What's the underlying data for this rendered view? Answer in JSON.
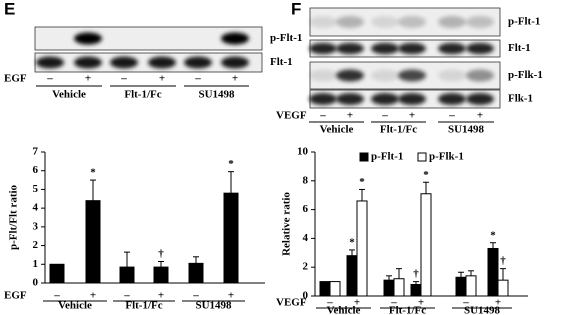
{
  "panels": [
    {
      "letter": "E",
      "blot_labels": [
        "p-Flt-1",
        "Flt-1"
      ],
      "treatment": "EGF",
      "signs": [
        "–",
        "+",
        "–",
        "+",
        "–",
        "+"
      ],
      "groups": [
        "Vehicle",
        "Flt-1/Fc",
        "SU1498"
      ]
    },
    {
      "letter": "F",
      "blot_labels": [
        "p-Flt-1",
        "Flt-1",
        "p-Flk-1",
        "Flk-1"
      ],
      "treatment": "VEGF",
      "signs": [
        "–",
        "+",
        "–",
        "+",
        "–",
        "+"
      ],
      "groups": [
        "Vehicle",
        "Flt-1/Fc",
        "SU1498"
      ]
    }
  ],
  "chart_data": [
    {
      "type": "bar",
      "ylabel": "p-Flt/Flt ratio",
      "treatment": "EGF",
      "categories": [
        "–",
        "+",
        "–",
        "+",
        "–",
        "+"
      ],
      "groups": [
        "Vehicle",
        "Flt-1/Fc",
        "SU1498"
      ],
      "ylim": [
        0,
        7
      ],
      "yticks": [
        0,
        1,
        2,
        3,
        4,
        5,
        6,
        7
      ],
      "series": [
        {
          "color": "#000000",
          "values": [
            1,
            4.4,
            0.85,
            0.85,
            1.05,
            4.8
          ],
          "errors": [
            null,
            1.1,
            0.8,
            0.3,
            0.35,
            1.15
          ],
          "markers": [
            null,
            "*",
            null,
            "†",
            null,
            "*"
          ]
        }
      ]
    },
    {
      "type": "bar",
      "ylabel": "Relative ratio",
      "treatment": "VEGF",
      "categories": [
        "–",
        "+",
        "–",
        "+",
        "–",
        "+"
      ],
      "groups": [
        "Vehicle",
        "Flt-1/Fc",
        "SU1498"
      ],
      "ylim": [
        0,
        10
      ],
      "yticks": [
        0,
        2,
        4,
        6,
        8,
        10
      ],
      "legend": "top",
      "series": [
        {
          "name": "p-Flt-1",
          "color": "#000000",
          "values": [
            1,
            2.8,
            1.1,
            0.8,
            1.3,
            3.3
          ],
          "errors": [
            null,
            0.4,
            0.3,
            0.2,
            0.35,
            0.4
          ],
          "markers": [
            null,
            "*",
            null,
            "†",
            null,
            "*"
          ]
        },
        {
          "name": "p-Flk-1",
          "color": "#ffffff",
          "values": [
            1,
            6.6,
            1.2,
            7.1,
            1.4,
            1.1
          ],
          "errors": [
            null,
            0.8,
            0.7,
            0.8,
            0.35,
            0.8
          ],
          "markers": [
            null,
            "*",
            null,
            "*",
            null,
            "†"
          ]
        }
      ]
    }
  ]
}
